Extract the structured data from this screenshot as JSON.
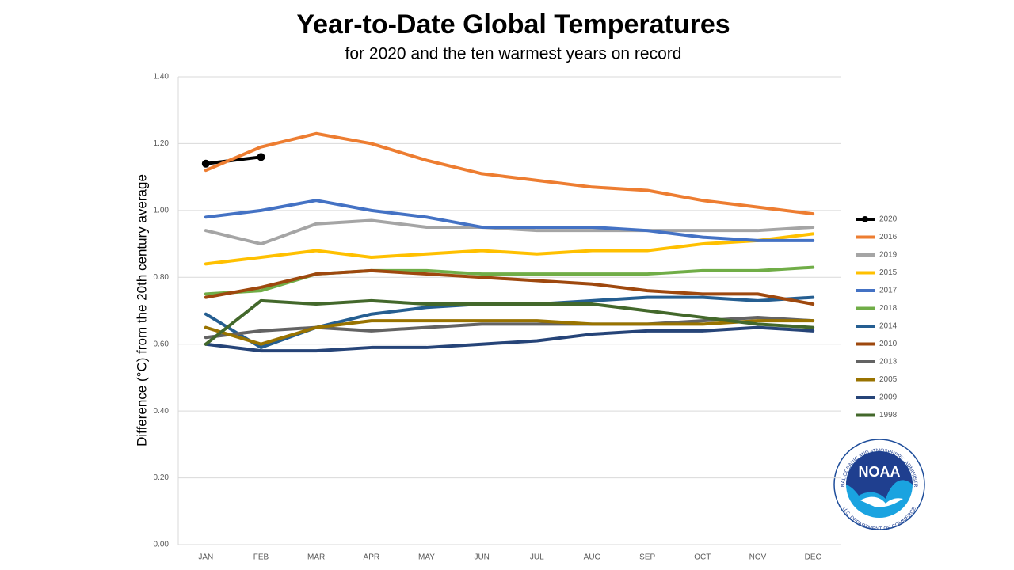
{
  "chart_data": {
    "type": "line",
    "title": "Year-to-Date Global Temperatures",
    "subtitle": "for 2020 and the ten warmest years on record",
    "y_label": "Difference (°C) from the 20th century average",
    "categories": [
      "JAN",
      "FEB",
      "MAR",
      "APR",
      "MAY",
      "JUN",
      "JUL",
      "AUG",
      "SEP",
      "OCT",
      "NOV",
      "DEC"
    ],
    "ylim": [
      0,
      1.4
    ],
    "yticks": [
      {
        "value": 0,
        "label": "0.00"
      },
      {
        "value": 0.2,
        "label": "0.20"
      },
      {
        "value": 0.4,
        "label": "0.40"
      },
      {
        "value": 0.6,
        "label": "0.60"
      },
      {
        "value": 0.8,
        "label": "0.80"
      },
      {
        "value": 1,
        "label": "1.00"
      },
      {
        "value": 1.2,
        "label": "1.20"
      },
      {
        "value": 1.4,
        "label": "1.40"
      }
    ],
    "grid": true,
    "legend": "right",
    "series": [
      {
        "name": "2020",
        "color": "#000000",
        "markers": true,
        "values": [
          1.14,
          1.16,
          null,
          null,
          null,
          null,
          null,
          null,
          null,
          null,
          null,
          null
        ]
      },
      {
        "name": "2016",
        "color": "#ed7d31",
        "values": [
          1.12,
          1.19,
          1.23,
          1.2,
          1.15,
          1.11,
          1.09,
          1.07,
          1.06,
          1.03,
          1.01,
          0.99
        ]
      },
      {
        "name": "2019",
        "color": "#a5a5a5",
        "values": [
          0.94,
          0.9,
          0.96,
          0.97,
          0.95,
          0.95,
          0.94,
          0.94,
          0.94,
          0.94,
          0.94,
          0.95
        ]
      },
      {
        "name": "2015",
        "color": "#ffc000",
        "values": [
          0.84,
          0.86,
          0.88,
          0.86,
          0.87,
          0.88,
          0.87,
          0.88,
          0.88,
          0.9,
          0.91,
          0.93
        ]
      },
      {
        "name": "2017",
        "color": "#4472c4",
        "values": [
          0.98,
          1.0,
          1.03,
          1.0,
          0.98,
          0.95,
          0.95,
          0.95,
          0.94,
          0.92,
          0.91,
          0.91
        ]
      },
      {
        "name": "2018",
        "color": "#70ad47",
        "values": [
          0.75,
          0.76,
          0.81,
          0.82,
          0.82,
          0.81,
          0.81,
          0.81,
          0.81,
          0.82,
          0.82,
          0.83
        ]
      },
      {
        "name": "2014",
        "color": "#255e91",
        "values": [
          0.69,
          0.59,
          0.65,
          0.69,
          0.71,
          0.72,
          0.72,
          0.73,
          0.74,
          0.74,
          0.73,
          0.74
        ]
      },
      {
        "name": "2010",
        "color": "#9e480e",
        "values": [
          0.74,
          0.77,
          0.81,
          0.82,
          0.81,
          0.8,
          0.79,
          0.78,
          0.76,
          0.75,
          0.75,
          0.72
        ]
      },
      {
        "name": "2013",
        "color": "#636363",
        "values": [
          0.62,
          0.64,
          0.65,
          0.64,
          0.65,
          0.66,
          0.66,
          0.66,
          0.66,
          0.67,
          0.68,
          0.67
        ]
      },
      {
        "name": "2005",
        "color": "#997300",
        "values": [
          0.65,
          0.6,
          0.65,
          0.67,
          0.67,
          0.67,
          0.67,
          0.66,
          0.66,
          0.66,
          0.67,
          0.67
        ]
      },
      {
        "name": "2009",
        "color": "#264478",
        "values": [
          0.6,
          0.58,
          0.58,
          0.59,
          0.59,
          0.6,
          0.61,
          0.63,
          0.64,
          0.64,
          0.65,
          0.64
        ]
      },
      {
        "name": "1998",
        "color": "#43682b",
        "values": [
          0.6,
          0.73,
          0.72,
          0.73,
          0.72,
          0.72,
          0.72,
          0.72,
          0.7,
          0.68,
          0.66,
          0.65
        ]
      }
    ]
  },
  "logo": {
    "text": "NOAA",
    "ring_top": "NATIONAL OCEANIC AND ATMOSPHERIC ADMINISTRATION",
    "ring_bottom": "U.S. DEPARTMENT OF COMMERCE"
  }
}
